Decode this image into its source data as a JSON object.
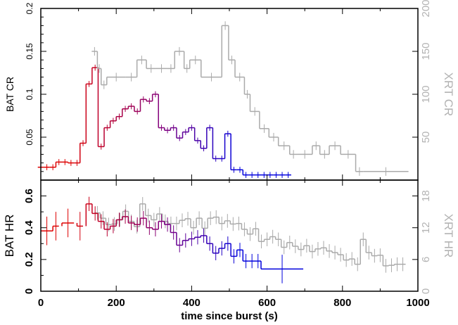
{
  "chart_data": {
    "type": "line",
    "xlabel": "time since burst (s)",
    "xlim": [
      0,
      1000
    ],
    "xticks": [
      0,
      200,
      400,
      600,
      800,
      1000
    ],
    "colors": {
      "bat_start": "#dd0000",
      "bat_mid": "#800080",
      "bat_end": "#0000dd",
      "xrt": "#aaaaaa"
    },
    "panels": [
      {
        "id": "count-rate",
        "ylabel_left": "BAT CR",
        "ylabel_right": "XRT CR",
        "ylim_left": [
          0,
          0.2
        ],
        "ylim_right": [
          0,
          200
        ],
        "yticks_left": [
          0.05,
          0.1,
          0.15,
          0.2
        ],
        "yticks_right": [
          50,
          100,
          150,
          200
        ],
        "series": [
          {
            "axis": "left",
            "color_mode": "gradient",
            "points": [
              [
                0,
                0.015
              ],
              [
                16,
                0.015
              ],
              [
                32,
                0.015
              ],
              [
                48,
                0.021
              ],
              [
                64,
                0.021
              ],
              [
                80,
                0.02
              ],
              [
                96,
                0.02
              ],
              [
                112,
                0.043
              ],
              [
                128,
                0.112
              ],
              [
                144,
                0.131
              ],
              [
                160,
                0.039
              ],
              [
                176,
                0.061
              ],
              [
                192,
                0.069
              ],
              [
                208,
                0.074
              ],
              [
                224,
                0.083
              ],
              [
                240,
                0.086
              ],
              [
                256,
                0.08
              ],
              [
                272,
                0.094
              ],
              [
                288,
                0.092
              ],
              [
                304,
                0.1
              ],
              [
                320,
                0.061
              ],
              [
                336,
                0.058
              ],
              [
                352,
                0.061
              ],
              [
                368,
                0.049
              ],
              [
                384,
                0.056
              ],
              [
                400,
                0.061
              ],
              [
                416,
                0.046
              ],
              [
                432,
                0.037
              ],
              [
                448,
                0.061
              ],
              [
                464,
                0.025
              ],
              [
                480,
                0.025
              ],
              [
                496,
                0.054
              ],
              [
                512,
                0.012
              ],
              [
                528,
                0.012
              ],
              [
                544,
                0.006
              ],
              [
                560,
                0.006
              ],
              [
                576,
                0.006
              ],
              [
                592,
                0.006
              ],
              [
                608,
                0.006
              ],
              [
                624,
                0.006
              ],
              [
                640,
                0.006
              ],
              [
                656,
                0.006
              ]
            ],
            "xerr": 8,
            "yerr": 0.0035
          },
          {
            "axis": "right",
            "color": "#aaaaaa",
            "bins": [
              [
                135,
                150,
                150
              ],
              [
                150,
                160,
                130
              ],
              [
                160,
                175,
                111
              ],
              [
                175,
                225,
                120
              ],
              [
                225,
                255,
                120
              ],
              [
                255,
                280,
                140
              ],
              [
                280,
                305,
                130
              ],
              [
                305,
                335,
                130
              ],
              [
                335,
                355,
                130
              ],
              [
                355,
                380,
                150
              ],
              [
                380,
                395,
                130
              ],
              [
                395,
                425,
                140
              ],
              [
                425,
                480,
                120
              ],
              [
                480,
                498,
                180
              ],
              [
                498,
                515,
                140
              ],
              [
                515,
                540,
                120
              ],
              [
                540,
                555,
                100
              ],
              [
                555,
                580,
                80
              ],
              [
                580,
                605,
                60
              ],
              [
                605,
                630,
                50
              ],
              [
                630,
                660,
                40
              ],
              [
                660,
                680,
                30
              ],
              [
                680,
                720,
                30
              ],
              [
                720,
                740,
                40
              ],
              [
                740,
                765,
                30
              ],
              [
                765,
                795,
                40
              ],
              [
                795,
                835,
                30
              ],
              [
                835,
                855,
                10
              ],
              [
                855,
                975,
                10
              ]
            ],
            "yerr": 5
          }
        ]
      },
      {
        "id": "hardness-ratio",
        "ylabel_left": "BAT HR",
        "ylabel_right": "XRT HR",
        "ylim_left": [
          0,
          0.7
        ],
        "ylim_right": [
          0,
          21
        ],
        "yticks_left": [
          0,
          0.2,
          0.4,
          0.6
        ],
        "yticks_right": [
          0,
          6,
          12,
          18
        ],
        "series": [
          {
            "axis": "left",
            "color_mode": "gradient",
            "points": [
              [
                16,
                0.38
              ],
              [
                40,
                0.41
              ],
              [
                72,
                0.43
              ],
              [
                104,
                0.41
              ],
              [
                128,
                0.55
              ],
              [
                144,
                0.49
              ],
              [
                160,
                0.44
              ],
              [
                176,
                0.39
              ],
              [
                192,
                0.41
              ],
              [
                208,
                0.45
              ],
              [
                224,
                0.47
              ],
              [
                240,
                0.43
              ],
              [
                256,
                0.42
              ],
              [
                272,
                0.46
              ],
              [
                288,
                0.4
              ],
              [
                304,
                0.39
              ],
              [
                320,
                0.44
              ],
              [
                336,
                0.42
              ],
              [
                352,
                0.37
              ],
              [
                368,
                0.29
              ],
              [
                384,
                0.32
              ],
              [
                400,
                0.33
              ],
              [
                416,
                0.34
              ],
              [
                432,
                0.35
              ],
              [
                448,
                0.3
              ],
              [
                464,
                0.24
              ],
              [
                480,
                0.27
              ],
              [
                496,
                0.3
              ],
              [
                512,
                0.22
              ],
              [
                528,
                0.26
              ],
              [
                544,
                0.19
              ],
              [
                560,
                0.19
              ],
              [
                576,
                0.19
              ],
              [
                640,
                0.14
              ]
            ],
            "xerr_default": 8,
            "yerr": 0.045
          },
          {
            "axis": "right",
            "color": "#aaaaaa",
            "points": [
              [
                150,
                14.8
              ],
              [
                165,
                13.8
              ],
              [
                180,
                12.6
              ],
              [
                195,
                12.7
              ],
              [
                210,
                13.5
              ],
              [
                225,
                15.1
              ],
              [
                240,
                13.2
              ],
              [
                255,
                12.2
              ],
              [
                270,
                16.5
              ],
              [
                285,
                14.3
              ],
              [
                300,
                13.5
              ],
              [
                315,
                14.6
              ],
              [
                330,
                13.2
              ],
              [
                345,
                12.8
              ],
              [
                360,
                12.8
              ],
              [
                375,
                13.4
              ],
              [
                390,
                13.7
              ],
              [
                405,
                12.0
              ],
              [
                420,
                13.8
              ],
              [
                435,
                11.9
              ],
              [
                450,
                13.8
              ],
              [
                465,
                14.0
              ],
              [
                480,
                12.8
              ],
              [
                495,
                13.3
              ],
              [
                510,
                12.7
              ],
              [
                525,
                12.8
              ],
              [
                540,
                11.7
              ],
              [
                555,
                10.8
              ],
              [
                570,
                11.8
              ],
              [
                585,
                9.4
              ],
              [
                600,
                9.8
              ],
              [
                615,
                10.3
              ],
              [
                630,
                9.8
              ],
              [
                645,
                8.3
              ],
              [
                660,
                9.2
              ],
              [
                675,
                8.5
              ],
              [
                690,
                7.9
              ],
              [
                705,
                8.6
              ],
              [
                720,
                7.5
              ],
              [
                735,
                8.0
              ],
              [
                750,
                8.2
              ],
              [
                765,
                7.6
              ],
              [
                780,
                7.3
              ],
              [
                795,
                6.9
              ],
              [
                810,
                5.9
              ],
              [
                825,
                6.1
              ],
              [
                840,
                5.1
              ],
              [
                855,
                9.8
              ],
              [
                870,
                7.3
              ],
              [
                885,
                6.7
              ],
              [
                900,
                6.8
              ],
              [
                915,
                4.8
              ],
              [
                930,
                4.9
              ],
              [
                945,
                5.1
              ],
              [
                960,
                5.1
              ]
            ],
            "xerr": 7.5,
            "yerr": 1.3
          }
        ]
      }
    ]
  }
}
